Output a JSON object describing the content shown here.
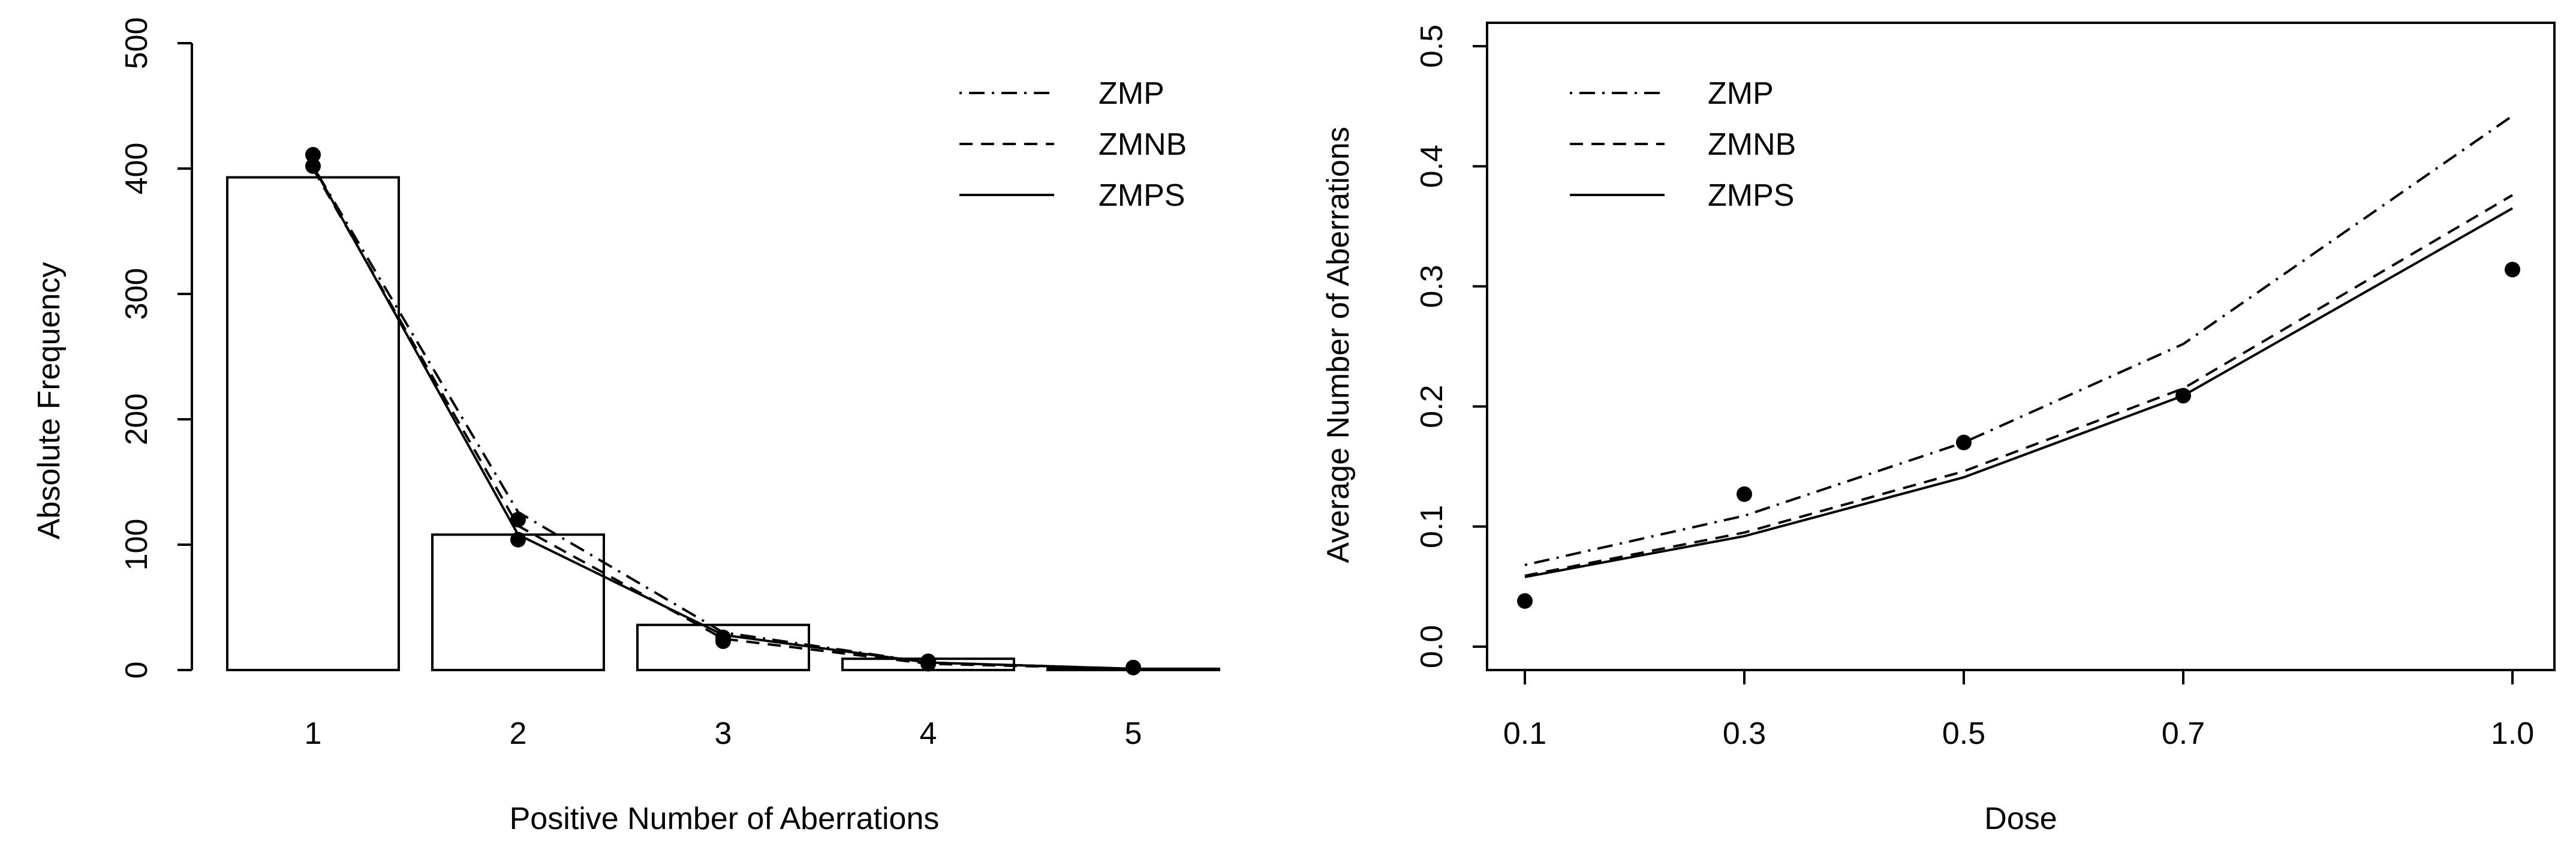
{
  "chart_data": [
    {
      "type": "bar",
      "xlabel": "Positive Number of Aberrations",
      "ylabel": "Absolute Frequency",
      "xticks": [
        "1",
        "2",
        "3",
        "4",
        "5"
      ],
      "yticks": [
        "0",
        "100",
        "200",
        "300",
        "400",
        "500"
      ],
      "ylim": [
        0,
        500
      ],
      "grid": false,
      "legend_position": "top-right",
      "categories": [
        1,
        2,
        3,
        4,
        5
      ],
      "bars": {
        "values": [
          393,
          108,
          36,
          9,
          1
        ]
      },
      "points": {
        "x": [
          1,
          1,
          2,
          2,
          3,
          3,
          4,
          4,
          5
        ],
        "y": [
          411,
          402,
          120,
          104,
          26,
          23,
          7,
          5,
          2
        ]
      },
      "series": [
        {
          "name": "ZMP",
          "style": "dashdot",
          "x": [
            1,
            2,
            3,
            4,
            5,
            5.4
          ],
          "y": [
            402,
            126,
            30,
            6,
            1,
            0.5
          ]
        },
        {
          "name": "ZMNB",
          "style": "dashed",
          "x": [
            1,
            2,
            3,
            4,
            5,
            5.4
          ],
          "y": [
            400,
            115,
            25,
            5,
            1,
            0.5
          ]
        },
        {
          "name": "ZMPS",
          "style": "solid",
          "x": [
            1,
            2,
            3,
            4,
            5,
            5.4
          ],
          "y": [
            402,
            108,
            28,
            6,
            1,
            0.5
          ]
        }
      ]
    },
    {
      "type": "line",
      "xlabel": "Dose",
      "ylabel": "Average Number of Aberrations",
      "xticks": [
        "0.1",
        "0.3",
        "0.5",
        "0.7",
        "1.0"
      ],
      "yticks": [
        "0.0",
        "0.1",
        "0.2",
        "0.3",
        "0.4",
        "0.5"
      ],
      "xlim": [
        0.065,
        1.04
      ],
      "ylim": [
        -0.02,
        0.52
      ],
      "grid": false,
      "legend_position": "top-left",
      "points": {
        "x": [
          0.1,
          0.3,
          0.5,
          0.7,
          1.0
        ],
        "y": [
          0.038,
          0.127,
          0.17,
          0.209,
          0.314
        ]
      },
      "series": [
        {
          "name": "ZMP",
          "style": "dashdot",
          "x": [
            0.1,
            0.3,
            0.5,
            0.7,
            1.0
          ],
          "y": [
            0.068,
            0.109,
            0.17,
            0.252,
            0.442
          ]
        },
        {
          "name": "ZMNB",
          "style": "dashed",
          "x": [
            0.1,
            0.3,
            0.5,
            0.7,
            1.0
          ],
          "y": [
            0.059,
            0.095,
            0.146,
            0.215,
            0.376
          ]
        },
        {
          "name": "ZMPS",
          "style": "solid",
          "x": [
            0.1,
            0.3,
            0.5,
            0.7,
            1.0
          ],
          "y": [
            0.058,
            0.092,
            0.141,
            0.209,
            0.365
          ]
        }
      ]
    }
  ]
}
